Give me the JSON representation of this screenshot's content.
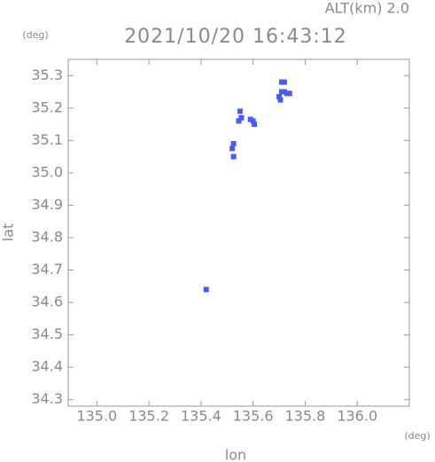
{
  "chart_data": {
    "type": "scatter",
    "title": "2021/10/20 16:43:12",
    "altitude_label": "ALT(km) 2.0",
    "x_label": "lon",
    "y_label": "lat",
    "x_unit": "(deg)",
    "y_unit": "(deg)",
    "x": [
      135.71,
      135.72,
      135.71,
      135.72,
      135.73,
      135.74,
      135.7,
      135.705,
      135.59,
      135.6,
      135.605,
      135.55,
      135.545,
      135.555,
      135.525,
      135.52,
      135.525,
      135.42
    ],
    "y": [
      35.28,
      35.28,
      35.25,
      35.25,
      35.245,
      35.245,
      35.235,
      35.225,
      35.165,
      35.16,
      35.15,
      35.19,
      35.16,
      35.17,
      35.09,
      35.075,
      35.05,
      34.64
    ],
    "color": "#4a5cf0",
    "xlim": [
      134.89,
      136.2
    ],
    "ylim": [
      34.28,
      35.35
    ],
    "xticks": [
      {
        "value": 135,
        "label": "135.0"
      },
      135.2,
      135.4,
      135.6,
      135.8,
      {
        "value": 136,
        "label": "136.0"
      }
    ],
    "yticks": [
      35.3,
      35.2,
      35.1,
      {
        "value": 35,
        "label": "35.0"
      },
      34.9,
      34.8,
      34.7,
      34.6,
      34.5,
      34.4,
      34.3
    ]
  }
}
